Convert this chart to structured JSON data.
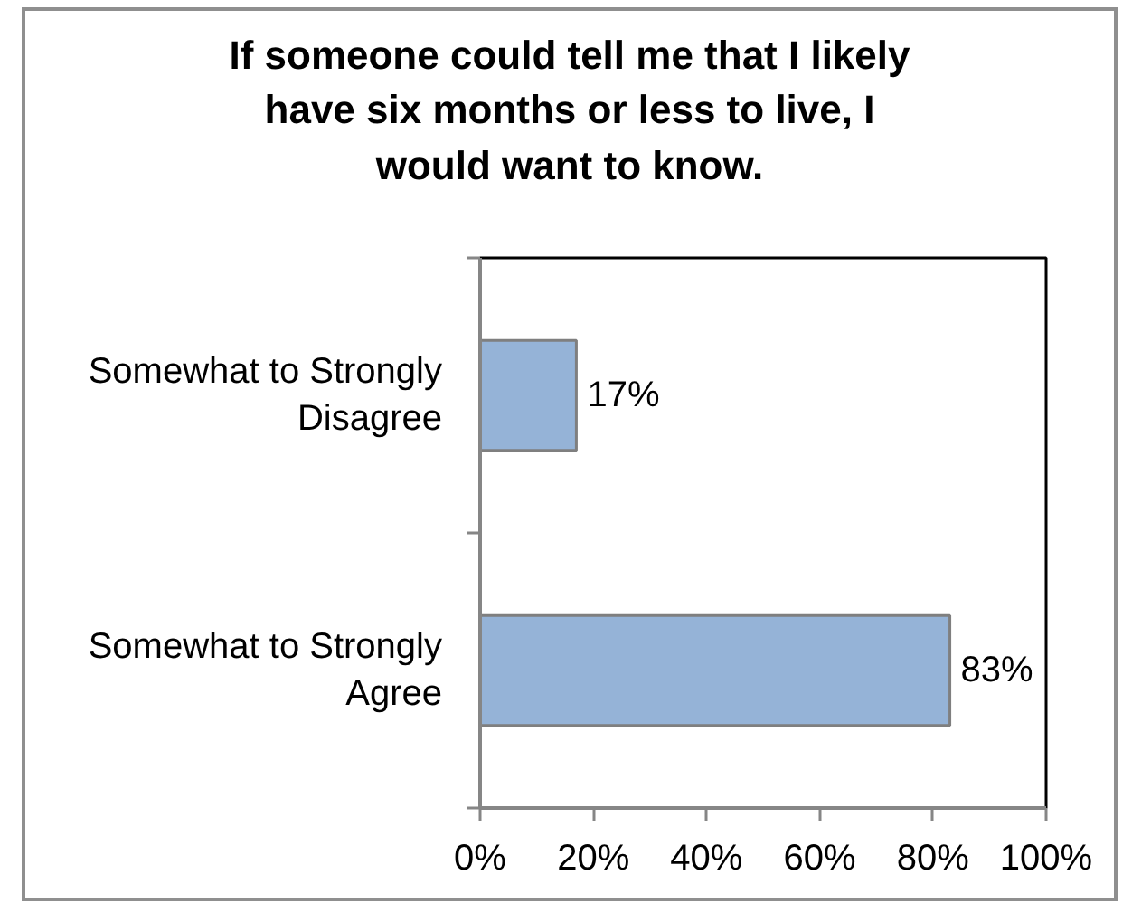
{
  "chart_data": {
    "type": "bar",
    "orientation": "horizontal",
    "title": "If someone could tell me that I likely have six months or less to live, I would want to know.",
    "categories": [
      "Somewhat to Strongly Disagree",
      "Somewhat to Strongly Agree"
    ],
    "values": [
      17,
      83
    ],
    "color": "#95b3d7",
    "value_labels": [
      "17%",
      "83%"
    ],
    "xlim": [
      0,
      100
    ],
    "xticks": [
      {
        "value": 0,
        "label": "0%"
      },
      {
        "value": 20,
        "label": "20%"
      },
      {
        "value": 40,
        "label": "40%"
      },
      {
        "value": 60,
        "label": "60%"
      },
      {
        "value": 80,
        "label": "80%"
      },
      {
        "value": 100,
        "label": "100%"
      }
    ]
  }
}
